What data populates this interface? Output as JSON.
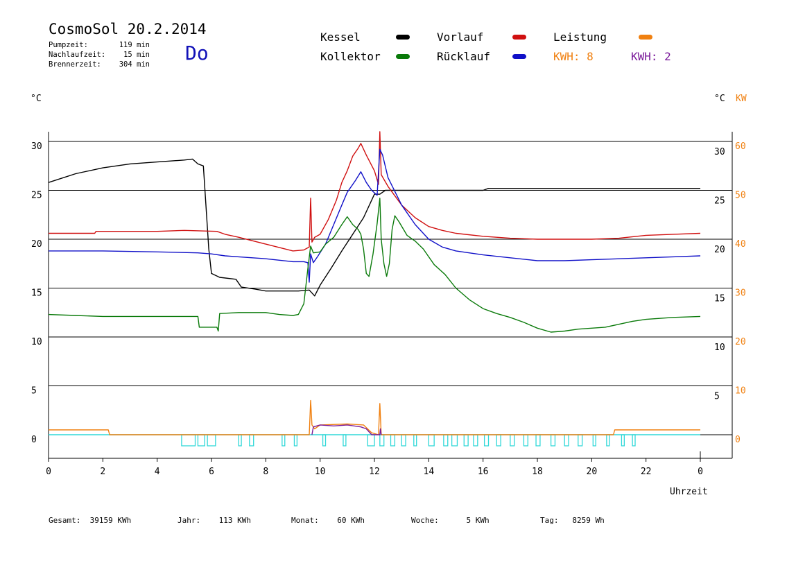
{
  "header": {
    "title": "CosmoSol 20.2.2014",
    "day": "Do",
    "stats": [
      {
        "label": "Pumpzeit:",
        "value": "119 min"
      },
      {
        "label": "Nachlaufzeit:",
        "value": "15 min"
      },
      {
        "label": "Brennerzeit:",
        "value": "304 min"
      }
    ]
  },
  "legend": {
    "kessel": "Kessel",
    "kollektor": "Kollektor",
    "vorlauf": "Vorlauf",
    "ruecklauf": "Rücklauf",
    "leistung": "Leistung",
    "kwh_a": "KWH: 8",
    "kwh_b": "KWH: 2"
  },
  "axes": {
    "left_unit": "°C",
    "right_unit": "°C",
    "right_unit2": "KW",
    "xlabel": "Uhrzeit"
  },
  "footer": [
    {
      "label": "Gesamt:",
      "value": "39159 KWh"
    },
    {
      "label": "Jahr:",
      "value": "113 KWh"
    },
    {
      "label": "Monat:",
      "value": "60 KWh"
    },
    {
      "label": "Woche:",
      "value": "5 KWh"
    },
    {
      "label": "Tag:",
      "value": "8259 Wh"
    }
  ],
  "colors": {
    "kessel": "#000000",
    "kollektor": "#0a7a0a",
    "vorlauf": "#d01010",
    "ruecklauf": "#1010c8",
    "leistung": "#f08010",
    "kwh2": "#7a1a9a",
    "pump": "#30d8d8"
  },
  "chart_data": {
    "type": "line",
    "xlabel": "Uhrzeit",
    "x_ticks": [
      "0",
      "2",
      "4",
      "6",
      "8",
      "10",
      "12",
      "14",
      "16",
      "18",
      "20",
      "22",
      "0"
    ],
    "xlim": [
      0,
      24
    ],
    "ylim": [
      -2.5,
      31
    ],
    "y_ticks_left": [
      0,
      5,
      10,
      15,
      20,
      25,
      30
    ],
    "y_ticks_right_temp": [
      5,
      10,
      15,
      20,
      25,
      30
    ],
    "y_ticks_right_kw": [
      0,
      10,
      20,
      30,
      40,
      50,
      60
    ],
    "series": [
      {
        "name": "Kessel",
        "color": "#000000",
        "points": [
          [
            0,
            25.8
          ],
          [
            1,
            26.7
          ],
          [
            2,
            27.3
          ],
          [
            3,
            27.7
          ],
          [
            4,
            27.9
          ],
          [
            5,
            28.1
          ],
          [
            5.3,
            28.2
          ],
          [
            5.5,
            27.7
          ],
          [
            5.7,
            27.5
          ],
          [
            5.9,
            19
          ],
          [
            6,
            16.5
          ],
          [
            6.3,
            16.1
          ],
          [
            6.9,
            15.9
          ],
          [
            7.1,
            15.1
          ],
          [
            7.6,
            14.9
          ],
          [
            8,
            14.7
          ],
          [
            9.2,
            14.7
          ],
          [
            9.6,
            14.8
          ],
          [
            9.8,
            14.2
          ],
          [
            10,
            15.3
          ],
          [
            10.4,
            17
          ],
          [
            10.8,
            18.8
          ],
          [
            11.2,
            20.5
          ],
          [
            11.6,
            22.2
          ],
          [
            12,
            24.6
          ],
          [
            12.2,
            24.6
          ],
          [
            12.4,
            25
          ],
          [
            14,
            25
          ],
          [
            16,
            25
          ],
          [
            16.2,
            25.2
          ],
          [
            18,
            25.2
          ],
          [
            22,
            25.2
          ],
          [
            24,
            25.2
          ]
        ]
      },
      {
        "name": "Vorlauf",
        "color": "#d01010",
        "points": [
          [
            0,
            20.6
          ],
          [
            1.7,
            20.6
          ],
          [
            1.75,
            20.8
          ],
          [
            3,
            20.8
          ],
          [
            4,
            20.8
          ],
          [
            5,
            20.9
          ],
          [
            6.2,
            20.8
          ],
          [
            6.5,
            20.5
          ],
          [
            7,
            20.2
          ],
          [
            8,
            19.5
          ],
          [
            9,
            18.8
          ],
          [
            9.4,
            18.9
          ],
          [
            9.6,
            19.2
          ],
          [
            9.65,
            24.2
          ],
          [
            9.7,
            19.7
          ],
          [
            9.8,
            20.2
          ],
          [
            10,
            20.5
          ],
          [
            10.3,
            22
          ],
          [
            10.6,
            24
          ],
          [
            10.8,
            25.8
          ],
          [
            11,
            27
          ],
          [
            11.2,
            28.5
          ],
          [
            11.4,
            29.3
          ],
          [
            11.5,
            29.8
          ],
          [
            11.7,
            28.6
          ],
          [
            12,
            27
          ],
          [
            12.15,
            25.6
          ],
          [
            12.2,
            31
          ],
          [
            12.25,
            26.6
          ],
          [
            12.5,
            25.4
          ],
          [
            13,
            23.5
          ],
          [
            13.5,
            22.2
          ],
          [
            14,
            21.3
          ],
          [
            14.5,
            20.9
          ],
          [
            15,
            20.6
          ],
          [
            16,
            20.3
          ],
          [
            17,
            20.1
          ],
          [
            18,
            20
          ],
          [
            19,
            20
          ],
          [
            20,
            20
          ],
          [
            21,
            20.1
          ],
          [
            22,
            20.4
          ],
          [
            23,
            20.5
          ],
          [
            24,
            20.6
          ]
        ]
      },
      {
        "name": "Rücklauf",
        "color": "#1010c8",
        "points": [
          [
            0,
            18.8
          ],
          [
            2,
            18.8
          ],
          [
            4,
            18.7
          ],
          [
            5.5,
            18.6
          ],
          [
            6,
            18.5
          ],
          [
            6.5,
            18.3
          ],
          [
            7,
            18.2
          ],
          [
            8,
            18
          ],
          [
            9,
            17.7
          ],
          [
            9.4,
            17.7
          ],
          [
            9.55,
            17.6
          ],
          [
            9.6,
            15.6
          ],
          [
            9.65,
            18.5
          ],
          [
            9.75,
            17.6
          ],
          [
            9.9,
            18.2
          ],
          [
            10.2,
            19.5
          ],
          [
            10.5,
            21.5
          ],
          [
            10.8,
            23.5
          ],
          [
            11,
            24.8
          ],
          [
            11.3,
            26
          ],
          [
            11.5,
            26.9
          ],
          [
            11.7,
            25.8
          ],
          [
            11.9,
            25
          ],
          [
            12.1,
            24.5
          ],
          [
            12.2,
            29.2
          ],
          [
            12.3,
            28.6
          ],
          [
            12.5,
            26.3
          ],
          [
            13,
            23.5
          ],
          [
            13.5,
            21.5
          ],
          [
            14,
            20
          ],
          [
            14.5,
            19.2
          ],
          [
            15,
            18.8
          ],
          [
            16,
            18.4
          ],
          [
            17,
            18.1
          ],
          [
            18,
            17.8
          ],
          [
            19,
            17.8
          ],
          [
            20,
            17.9
          ],
          [
            21,
            18
          ],
          [
            22,
            18.1
          ],
          [
            23,
            18.2
          ],
          [
            24,
            18.3
          ]
        ]
      },
      {
        "name": "Kollektor",
        "color": "#0a7a0a",
        "points": [
          [
            0,
            12.3
          ],
          [
            1,
            12.2
          ],
          [
            2,
            12.1
          ],
          [
            3,
            12.1
          ],
          [
            4,
            12.1
          ],
          [
            5.5,
            12.1
          ],
          [
            5.55,
            11
          ],
          [
            6.2,
            11
          ],
          [
            6.25,
            10.6
          ],
          [
            6.3,
            12.4
          ],
          [
            7,
            12.5
          ],
          [
            8,
            12.5
          ],
          [
            8.5,
            12.3
          ],
          [
            9,
            12.2
          ],
          [
            9.2,
            12.3
          ],
          [
            9.4,
            13.4
          ],
          [
            9.55,
            17
          ],
          [
            9.65,
            19.3
          ],
          [
            9.75,
            18.6
          ],
          [
            10,
            18.7
          ],
          [
            10.2,
            19.5
          ],
          [
            10.5,
            20.2
          ],
          [
            10.8,
            21.5
          ],
          [
            11,
            22.3
          ],
          [
            11.2,
            21.5
          ],
          [
            11.4,
            21
          ],
          [
            11.5,
            20.5
          ],
          [
            11.6,
            19
          ],
          [
            11.7,
            16.5
          ],
          [
            11.8,
            16.2
          ],
          [
            11.95,
            18.5
          ],
          [
            12.1,
            21.6
          ],
          [
            12.2,
            24.2
          ],
          [
            12.25,
            20
          ],
          [
            12.35,
            17.5
          ],
          [
            12.45,
            16.2
          ],
          [
            12.55,
            17.5
          ],
          [
            12.65,
            21
          ],
          [
            12.75,
            22.4
          ],
          [
            12.9,
            21.8
          ],
          [
            13.2,
            20.4
          ],
          [
            13.5,
            19.8
          ],
          [
            13.8,
            19
          ],
          [
            14,
            18.2
          ],
          [
            14.2,
            17.4
          ],
          [
            14.6,
            16.4
          ],
          [
            15,
            15
          ],
          [
            15.5,
            13.8
          ],
          [
            16,
            12.9
          ],
          [
            16.5,
            12.4
          ],
          [
            17,
            12
          ],
          [
            17.5,
            11.5
          ],
          [
            18,
            10.9
          ],
          [
            18.5,
            10.5
          ],
          [
            19,
            10.6
          ],
          [
            19.5,
            10.8
          ],
          [
            20,
            10.9
          ],
          [
            20.5,
            11
          ],
          [
            21,
            11.3
          ],
          [
            21.5,
            11.6
          ],
          [
            22,
            11.8
          ],
          [
            23,
            12
          ],
          [
            24,
            12.1
          ]
        ]
      },
      {
        "name": "Leistung",
        "color": "#f08010",
        "points": [
          [
            0,
            0.5
          ],
          [
            2.2,
            0.5
          ],
          [
            2.25,
            0
          ],
          [
            9.6,
            0
          ],
          [
            9.65,
            3.5
          ],
          [
            9.7,
            1
          ],
          [
            9.8,
            0.6
          ],
          [
            10,
            1
          ],
          [
            11,
            1.1
          ],
          [
            11.6,
            1.0
          ],
          [
            11.9,
            0.2
          ],
          [
            12.15,
            0
          ],
          [
            12.2,
            3.2
          ],
          [
            12.25,
            0
          ],
          [
            20.8,
            0
          ],
          [
            20.85,
            0.5
          ],
          [
            24,
            0.5
          ]
        ]
      },
      {
        "name": "KWH 2",
        "color": "#7a1a9a",
        "points": [
          [
            9.7,
            0
          ],
          [
            9.75,
            0.8
          ],
          [
            10,
            1
          ],
          [
            10.5,
            0.9
          ],
          [
            11,
            1
          ],
          [
            11.5,
            0.8
          ],
          [
            11.7,
            0.6
          ],
          [
            11.9,
            0
          ],
          [
            12.2,
            0
          ],
          [
            12.22,
            0.6
          ],
          [
            12.25,
            0
          ]
        ]
      }
    ],
    "pump_intervals": [
      [
        4.9,
        5.4
      ],
      [
        5.5,
        5.75
      ],
      [
        5.85,
        6.15
      ],
      [
        7.0,
        7.1
      ],
      [
        7.4,
        7.55
      ],
      [
        8.6,
        8.7
      ],
      [
        9.05,
        9.15
      ],
      [
        10.1,
        10.2
      ],
      [
        10.85,
        10.95
      ],
      [
        11.75,
        12.0
      ],
      [
        12.2,
        12.35
      ],
      [
        12.6,
        12.75
      ],
      [
        13.0,
        13.15
      ],
      [
        13.45,
        13.55
      ],
      [
        14.0,
        14.2
      ],
      [
        14.55,
        14.7
      ],
      [
        14.85,
        15.05
      ],
      [
        15.3,
        15.45
      ],
      [
        15.65,
        15.8
      ],
      [
        16.05,
        16.2
      ],
      [
        16.5,
        16.65
      ],
      [
        17.0,
        17.15
      ],
      [
        17.5,
        17.65
      ],
      [
        17.95,
        18.1
      ],
      [
        18.5,
        18.65
      ],
      [
        19.0,
        19.15
      ],
      [
        19.5,
        19.65
      ],
      [
        20.05,
        20.15
      ],
      [
        20.55,
        20.65
      ],
      [
        21.1,
        21.2
      ],
      [
        21.5,
        21.6
      ]
    ]
  }
}
